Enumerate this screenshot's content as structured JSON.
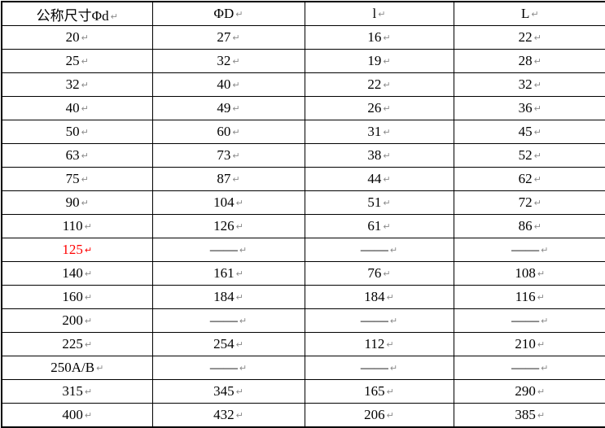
{
  "table": {
    "headers": [
      "公称尺寸Φd",
      "ΦD",
      "l",
      "L"
    ],
    "paragraph_mark": "↵",
    "dash_placeholder": "——",
    "text_color": "#000000",
    "highlight_color": "#ff0000",
    "border_color": "#000000",
    "background_color": "#ffffff",
    "rows": [
      {
        "highlight": false,
        "cells": [
          "20",
          "27",
          "16",
          "22"
        ]
      },
      {
        "highlight": false,
        "cells": [
          "25",
          "32",
          "19",
          "28"
        ]
      },
      {
        "highlight": false,
        "cells": [
          "32",
          "40",
          "22",
          "32"
        ]
      },
      {
        "highlight": false,
        "cells": [
          "40",
          "49",
          "26",
          "36"
        ]
      },
      {
        "highlight": false,
        "cells": [
          "50",
          "60",
          "31",
          "45"
        ]
      },
      {
        "highlight": false,
        "cells": [
          "63",
          "73",
          "38",
          "52"
        ]
      },
      {
        "highlight": false,
        "cells": [
          "75",
          "87",
          "44",
          "62"
        ]
      },
      {
        "highlight": false,
        "cells": [
          "90",
          "104",
          "51",
          "72"
        ]
      },
      {
        "highlight": false,
        "cells": [
          "110",
          "126",
          "61",
          "86"
        ]
      },
      {
        "highlight": true,
        "cells": [
          "125",
          "——",
          "——",
          "——"
        ]
      },
      {
        "highlight": false,
        "cells": [
          "140",
          "161",
          "76",
          "108"
        ]
      },
      {
        "highlight": false,
        "cells": [
          "160",
          "184",
          "184",
          "116"
        ]
      },
      {
        "highlight": false,
        "cells": [
          "200",
          "——",
          "——",
          "——"
        ]
      },
      {
        "highlight": false,
        "cells": [
          "225",
          "254",
          "112",
          "210"
        ]
      },
      {
        "highlight": false,
        "cells": [
          "250A/B",
          "——",
          "——",
          "——"
        ]
      },
      {
        "highlight": false,
        "cells": [
          "315",
          "345",
          "165",
          "290"
        ]
      },
      {
        "highlight": false,
        "cells": [
          "400",
          "432",
          "206",
          "385"
        ]
      }
    ]
  }
}
